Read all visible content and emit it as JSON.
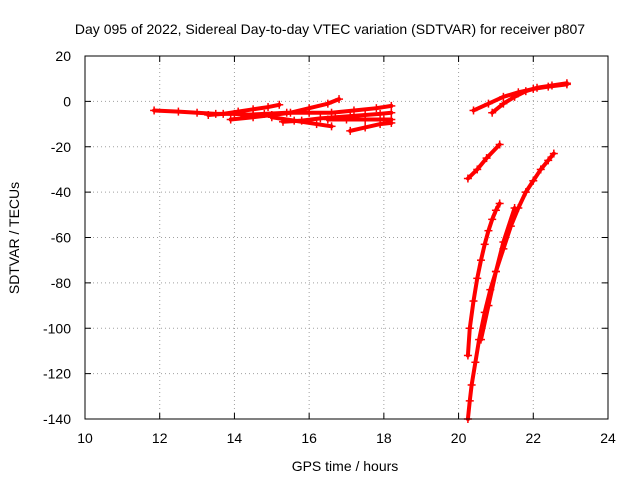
{
  "chart_data": {
    "type": "scatter",
    "title": "Day 095 of 2022, Sidereal Day-to-day VTEC variation (SDTVAR) for receiver p807",
    "xlabel": "GPS time / hours",
    "ylabel": "SDTVAR / TECUs",
    "xlim": [
      10,
      24
    ],
    "ylim": [
      -140,
      20
    ],
    "x_ticks": [
      10,
      12,
      14,
      16,
      18,
      20,
      22,
      24
    ],
    "y_ticks": [
      -140,
      -120,
      -100,
      -80,
      -60,
      -40,
      -20,
      0,
      20
    ],
    "x_tick_labels": [
      "10",
      "12",
      "14",
      "16",
      "18",
      "20",
      "22",
      "24"
    ],
    "y_tick_labels": [
      "-140",
      "-120",
      "-100",
      "-80",
      "-60",
      "-40",
      "-20",
      "0",
      "20"
    ],
    "grid": true,
    "marker": "+",
    "colors": {
      "series": "#ff0000",
      "grid": "#a0a0a0",
      "axes": "#000000"
    },
    "series": [
      {
        "segments": [
          {
            "x": [
              11.85,
              12.5,
              13.0,
              13.5,
              14.0,
              14.5,
              15.0
            ],
            "y": [
              -4,
              -4.5,
              -5,
              -5.5,
              -5.5,
              -6,
              -6
            ]
          },
          {
            "x": [
              13.3,
              13.7,
              14.1,
              14.5,
              14.9,
              15.2
            ],
            "y": [
              -6,
              -5.5,
              -4.5,
              -3.5,
              -2.5,
              -1.5
            ]
          },
          {
            "x": [
              13.9,
              14.5,
              15.0,
              15.5,
              16.0,
              16.5,
              16.8
            ],
            "y": [
              -8,
              -7,
              -6,
              -5,
              -3,
              -1,
              1
            ]
          },
          {
            "x": [
              14.2,
              14.8,
              15.4,
              16.0,
              16.6,
              17.2,
              17.8,
              18.2
            ],
            "y": [
              -6,
              -5.5,
              -5,
              -5,
              -5,
              -4,
              -3,
              -2
            ]
          },
          {
            "x": [
              15.3,
              15.8,
              16.3,
              16.7,
              17.1,
              17.5,
              17.9,
              18.2
            ],
            "y": [
              -9,
              -8.5,
              -7.5,
              -7,
              -6.5,
              -6,
              -5.5,
              -5
            ]
          },
          {
            "x": [
              15.0,
              15.6,
              16.2,
              16.6
            ],
            "y": [
              -7,
              -8.5,
              -10,
              -11
            ]
          },
          {
            "x": [
              16.5,
              17.0,
              17.5,
              18.0,
              18.2
            ],
            "y": [
              -8,
              -8,
              -8,
              -8,
              -8
            ]
          },
          {
            "x": [
              17.1,
              17.5,
              17.9,
              18.2
            ],
            "y": [
              -13,
              -11.5,
              -10,
              -9.5
            ]
          },
          {
            "x": [
              20.4,
              20.8,
              21.2,
              21.6,
              22.0,
              22.4,
              22.9
            ],
            "y": [
              -4,
              -1,
              2,
              4,
              5.5,
              6.5,
              7.5
            ]
          },
          {
            "x": [
              20.9,
              21.2,
              21.5,
              21.8,
              22.1,
              22.5,
              22.9
            ],
            "y": [
              -5,
              -1,
              2,
              4.5,
              6,
              7,
              8
            ]
          },
          {
            "x": [
              20.25,
              20.5,
              20.75,
              21.1
            ],
            "y": [
              -34,
              -30,
              -25,
              -19
            ]
          },
          {
            "x": [
              20.25,
              20.3,
              20.4,
              20.5,
              20.6,
              20.7,
              20.8,
              20.9,
              21.0,
              21.1
            ],
            "y": [
              -112,
              -100,
              -88,
              -78,
              -70,
              -63,
              -57,
              -52,
              -48,
              -45
            ]
          },
          {
            "x": [
              20.25,
              20.3,
              20.35,
              20.45,
              20.55,
              20.7,
              20.85,
              21.0,
              21.2,
              21.4,
              21.6,
              21.8,
              22.0,
              22.2,
              22.4,
              22.55
            ],
            "y": [
              -140,
              -132,
              -125,
              -115,
              -105,
              -93,
              -83,
              -75,
              -65,
              -55,
              -47,
              -40,
              -35,
              -30,
              -26,
              -23
            ]
          },
          {
            "x": [
              20.6,
              20.8,
              21.0,
              21.2,
              21.5
            ],
            "y": [
              -105,
              -90,
              -75,
              -62,
              -47
            ]
          }
        ]
      }
    ]
  }
}
